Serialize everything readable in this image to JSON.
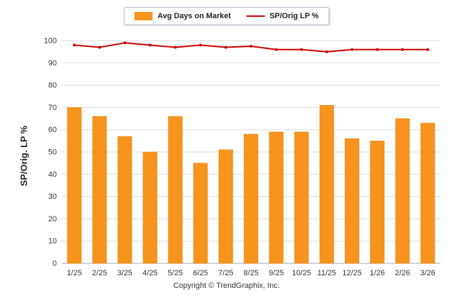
{
  "chart_data": {
    "type": "bar",
    "categories": [
      "1/25",
      "2/25",
      "3/25",
      "4/25",
      "5/25",
      "6/25",
      "7/25",
      "8/25",
      "9/25",
      "10/25",
      "11/25",
      "12/25",
      "1/26",
      "2/26",
      "3/26"
    ],
    "series": [
      {
        "name": "Avg Days on Market",
        "type": "bar",
        "color": "#F7941D",
        "values": [
          70,
          66,
          57,
          50,
          66,
          45,
          51,
          58,
          59,
          59,
          71,
          56,
          55,
          65,
          63
        ]
      },
      {
        "name": "SP/Orig LP %",
        "type": "line",
        "color": "#CC0000",
        "values": [
          98,
          97,
          99,
          98,
          97,
          98,
          97,
          97.5,
          96,
          96,
          95,
          96,
          96,
          96,
          96
        ]
      }
    ],
    "title": "",
    "xlabel": "",
    "ylabel": "SP/Orig. LP %",
    "ylim": [
      0,
      100
    ],
    "ytick_step": 10,
    "yticks": [
      "0",
      "10",
      "20",
      "30",
      "40",
      "50",
      "60",
      "70",
      "80",
      "90",
      "100"
    ],
    "grid": true,
    "legend_position": "top",
    "gridline_color": "#dddddd",
    "axis_line_color": "#aaaaaa",
    "tick_label_color": "#333333"
  },
  "legend": {
    "items": [
      {
        "label": "Avg Days on Market",
        "color": "#F7941D",
        "type": "bar"
      },
      {
        "label": "SP/Orig LP %",
        "color": "#CC0000",
        "type": "line"
      }
    ]
  },
  "footer": {
    "copyright": "Copyright © TrendGraphix, Inc."
  }
}
